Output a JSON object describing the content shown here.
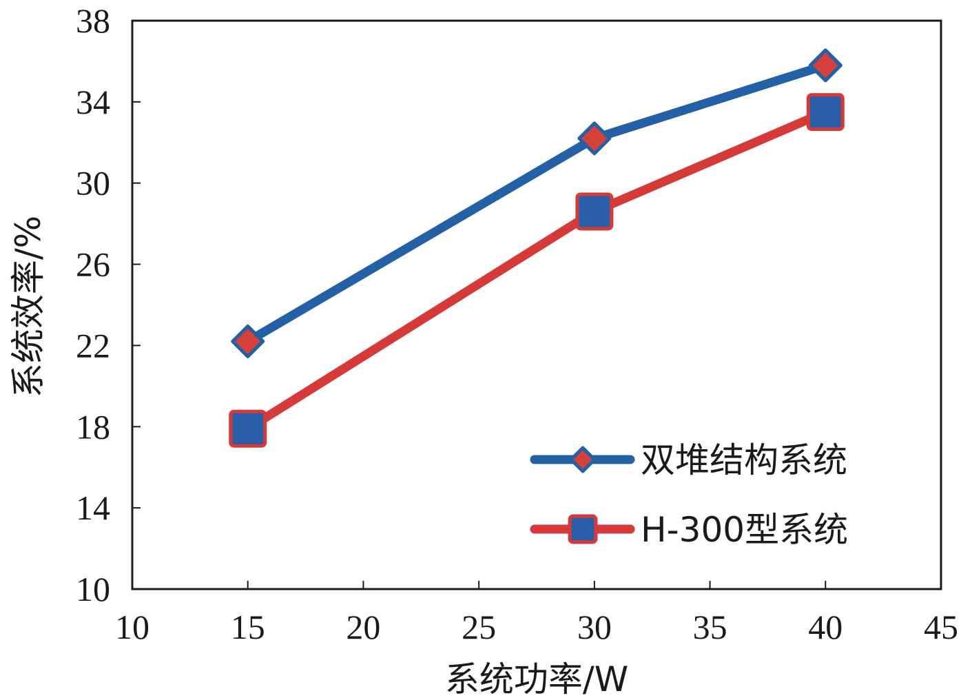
{
  "chart_data": {
    "type": "line",
    "xlabel": "系统功率/W",
    "ylabel": "系统效率/%",
    "xlim": [
      10,
      45
    ],
    "ylim": [
      10,
      38
    ],
    "xticks": [
      10,
      15,
      20,
      25,
      30,
      35,
      40,
      45
    ],
    "yticks": [
      10,
      14,
      18,
      22,
      26,
      30,
      34,
      38
    ],
    "x": [
      15,
      30,
      40
    ],
    "grid": false,
    "legend_position": "bottom-right",
    "series": [
      {
        "name": "双堆结构系统",
        "values": [
          22.2,
          32.2,
          35.8
        ],
        "line_color": "#2360a5",
        "marker": "diamond",
        "marker_color": "#d6403a"
      },
      {
        "name": "H-300型系统",
        "values": [
          17.9,
          28.6,
          33.5
        ],
        "line_color": "#d63a38",
        "marker": "square",
        "marker_color": "#2a5ea8"
      }
    ]
  }
}
